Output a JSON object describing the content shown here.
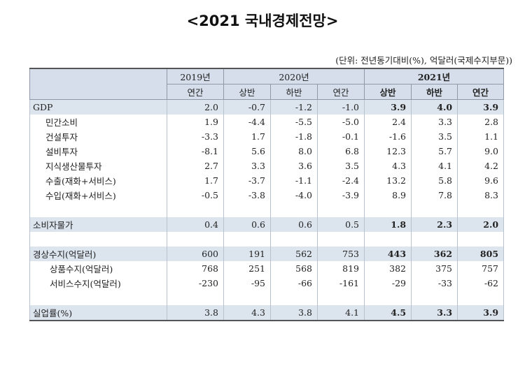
{
  "title": "<2021 국내경제전망>",
  "unit_note": "(단위: 전년동기대비(%), 억달러(국제수지부문))",
  "header": {
    "years": [
      "2019년",
      "2020년",
      "2021년"
    ],
    "y2019_cols": [
      "연간"
    ],
    "y2020_cols": [
      "상반",
      "하반",
      "연간"
    ],
    "y2021_cols": [
      "상반",
      "하반",
      "연간"
    ]
  },
  "rows": [
    {
      "label": "GDP",
      "values": [
        "2.0",
        "-0.7",
        "-1.2",
        "-1.0",
        "3.9",
        "4.0",
        "3.9"
      ]
    },
    {
      "label": "민간소비",
      "values": [
        "1.9",
        "-4.4",
        "-5.5",
        "-5.0",
        "2.4",
        "3.3",
        "2.8"
      ]
    },
    {
      "label": "건설투자",
      "values": [
        "-3.3",
        "1.7",
        "-1.8",
        "-0.1",
        "-1.6",
        "3.5",
        "1.1"
      ]
    },
    {
      "label": "설비투자",
      "values": [
        "-8.1",
        "5.6",
        "8.0",
        "6.8",
        "12.3",
        "5.7",
        "9.0"
      ]
    },
    {
      "label": "지식생산물투자",
      "values": [
        "2.7",
        "3.3",
        "3.6",
        "3.5",
        "4.3",
        "4.1",
        "4.2"
      ]
    },
    {
      "label": "수출(재화+서비스)",
      "values": [
        "1.7",
        "-3.7",
        "-1.1",
        "-2.4",
        "13.2",
        "5.8",
        "9.6"
      ]
    },
    {
      "label": "수입(재화+서비스)",
      "values": [
        "-0.5",
        "-3.8",
        "-4.0",
        "-3.9",
        "8.9",
        "7.8",
        "8.3"
      ]
    },
    {
      "label": "소비자물가",
      "values": [
        "0.4",
        "0.6",
        "0.6",
        "0.5",
        "1.8",
        "2.3",
        "2.0"
      ]
    },
    {
      "label": "경상수지(억달러)",
      "values": [
        "600",
        "191",
        "562",
        "753",
        "443",
        "362",
        "805"
      ]
    },
    {
      "label": "상품수지(억달러)",
      "values": [
        "768",
        "251",
        "568",
        "819",
        "382",
        "375",
        "757"
      ]
    },
    {
      "label": "서비스수지(억달러)",
      "values": [
        "-230",
        "-95",
        "-66",
        "-161",
        "-29",
        "-33",
        "-62"
      ]
    },
    {
      "label": "실업률(%)",
      "values": [
        "3.8",
        "4.3",
        "3.8",
        "4.1",
        "4.5",
        "3.3",
        "3.9"
      ]
    }
  ]
}
